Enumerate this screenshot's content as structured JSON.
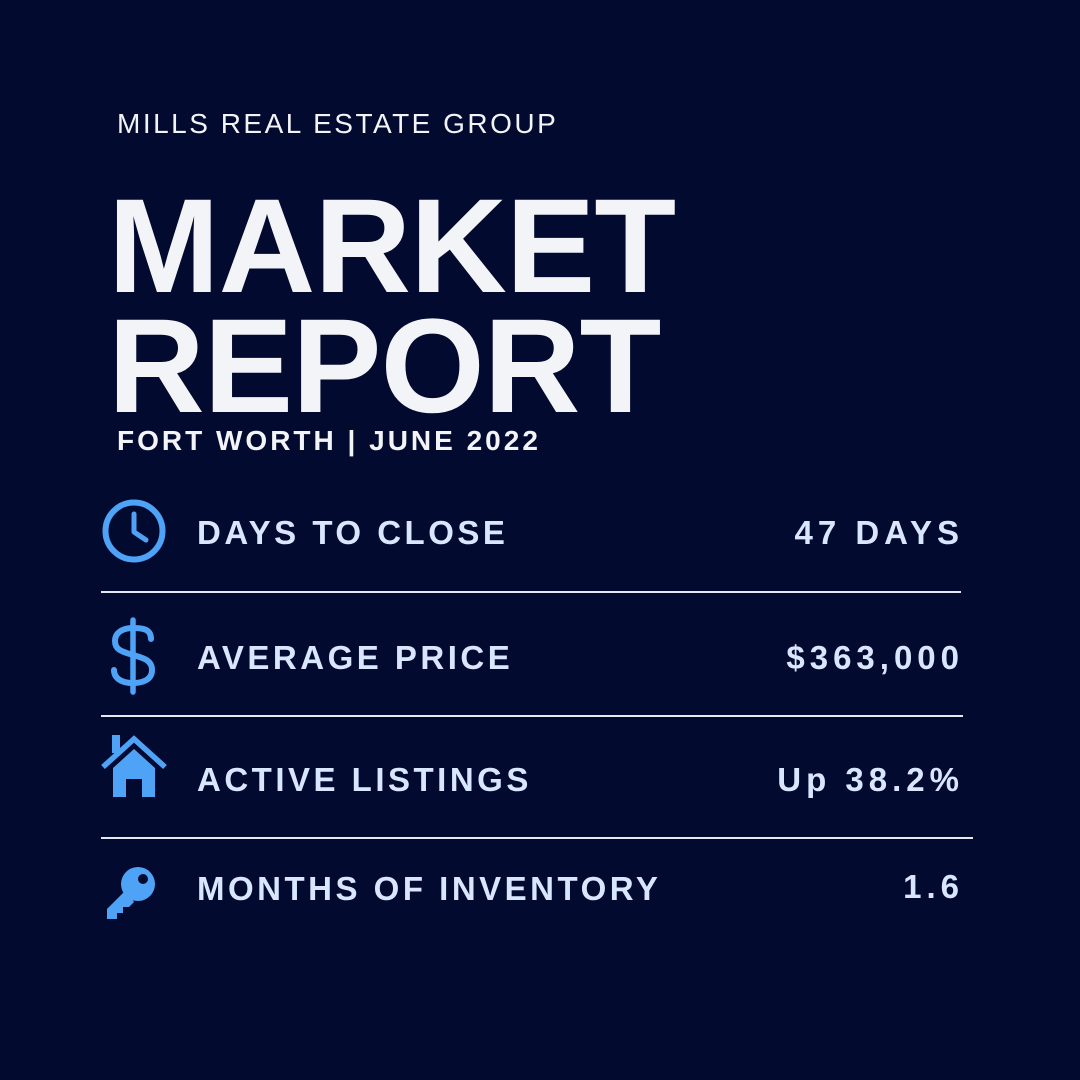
{
  "header": {
    "company": "MILLS REAL ESTATE GROUP",
    "title_line1": "MARKET",
    "title_line2": "REPORT",
    "subtitle": "FORT WORTH | JUNE 2022"
  },
  "colors": {
    "background": "#030A30",
    "title": "#F2F4F8",
    "stat_text": "#D8E6FF",
    "icon": "#4FA3F7",
    "divider": "#E6E9F2"
  },
  "stats": [
    {
      "icon": "clock-icon",
      "label": "DAYS TO CLOSE",
      "value": "47 DAYS"
    },
    {
      "icon": "dollar-icon",
      "label": "AVERAGE PRICE",
      "value": "$363,000"
    },
    {
      "icon": "house-icon",
      "label": "ACTIVE LISTINGS",
      "value": "Up 38.2%"
    },
    {
      "icon": "key-icon",
      "label": "MONTHS OF INVENTORY",
      "value": "1.6"
    }
  ]
}
